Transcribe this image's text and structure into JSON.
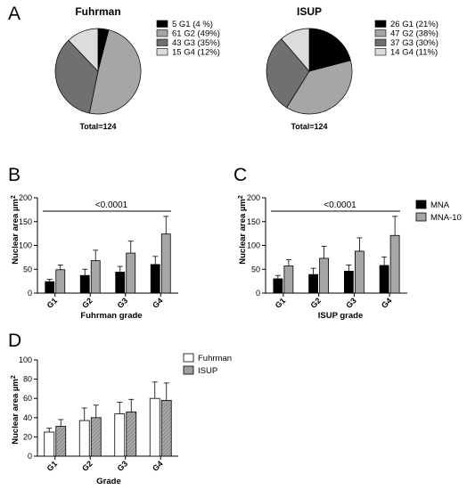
{
  "colors": {
    "g1": "#000000",
    "g2": "#a6a6a6",
    "g3": "#707070",
    "g4": "#dcdcdc",
    "mna": "#000000",
    "mna10": "#a6a6a6",
    "fuhrman_bar": "#ffffff",
    "isup_bar": "#a8a8a8"
  },
  "chart_data": [
    {
      "panel": "A",
      "type": "pie",
      "title": "Fuhrman",
      "total_label": "Total=124",
      "slices": [
        {
          "label": "5 G1 (4 %)",
          "value": 5,
          "color": "#000000"
        },
        {
          "label": "61 G2 (49%)",
          "value": 61,
          "color": "#a6a6a6"
        },
        {
          "label": "43 G3 (35%)",
          "value": 43,
          "color": "#707070"
        },
        {
          "label": "15 G4 (12%)",
          "value": 15,
          "color": "#dcdcdc"
        }
      ]
    },
    {
      "panel": "",
      "type": "pie",
      "title": "ISUP",
      "total_label": "Total=124",
      "slices": [
        {
          "label": "26 G1 (21%)",
          "value": 26,
          "color": "#000000"
        },
        {
          "label": "47 G2 (38%)",
          "value": 47,
          "color": "#a6a6a6"
        },
        {
          "label": "37 G3 (30%)",
          "value": 37,
          "color": "#707070"
        },
        {
          "label": "14 G4 (11%)",
          "value": 14,
          "color": "#dcdcdc"
        }
      ]
    },
    {
      "panel": "B",
      "type": "bar",
      "categories": [
        "G1",
        "G2",
        "G3",
        "G4"
      ],
      "xlabel": "Fuhrman grade",
      "ylabel": "Nuclear area µm",
      "ylabel_sup": "2",
      "ylim": [
        0,
        200
      ],
      "yticks": [
        0,
        50,
        100,
        150,
        200
      ],
      "significance": "<0.0001",
      "series": [
        {
          "name": "MNA",
          "values": [
            24,
            37,
            44,
            60
          ],
          "errors": [
            5,
            13,
            12,
            17
          ],
          "color": "#000000"
        },
        {
          "name": "MNA-10",
          "values": [
            49,
            68,
            84,
            124
          ],
          "errors": [
            10,
            22,
            25,
            37
          ],
          "color": "#a6a6a6"
        }
      ]
    },
    {
      "panel": "C",
      "type": "bar",
      "categories": [
        "G1",
        "G2",
        "G3",
        "G4"
      ],
      "xlabel": "ISUP grade",
      "ylabel": "Nuclear area µm",
      "ylabel_sup": "2",
      "ylim": [
        0,
        200
      ],
      "yticks": [
        0,
        50,
        100,
        150,
        200
      ],
      "significance": "<0.0001",
      "legend": "right",
      "series": [
        {
          "name": "MNA",
          "values": [
            30,
            39,
            46,
            58
          ],
          "errors": [
            7,
            13,
            13,
            18
          ],
          "color": "#000000"
        },
        {
          "name": "MNA-10",
          "values": [
            57,
            73,
            88,
            121
          ],
          "errors": [
            13,
            25,
            28,
            40
          ],
          "color": "#a6a6a6"
        }
      ]
    },
    {
      "panel": "D",
      "type": "bar",
      "categories": [
        "G1",
        "G2",
        "G3",
        "G4"
      ],
      "xlabel": "Grade",
      "ylabel": "Nuclear area µm",
      "ylabel_sup": "2",
      "ylim": [
        0,
        100
      ],
      "yticks": [
        0,
        20,
        40,
        60,
        80,
        100
      ],
      "legend": "top-right",
      "series": [
        {
          "name": "Fuhrman",
          "values": [
            25,
            37,
            44,
            60
          ],
          "errors": [
            4,
            13,
            12,
            17
          ],
          "color": "#ffffff"
        },
        {
          "name": "ISUP",
          "values": [
            31,
            40,
            46,
            58
          ],
          "errors": [
            7,
            13,
            13,
            18
          ],
          "color": "#a8a8a8",
          "hatched": true
        }
      ]
    }
  ]
}
